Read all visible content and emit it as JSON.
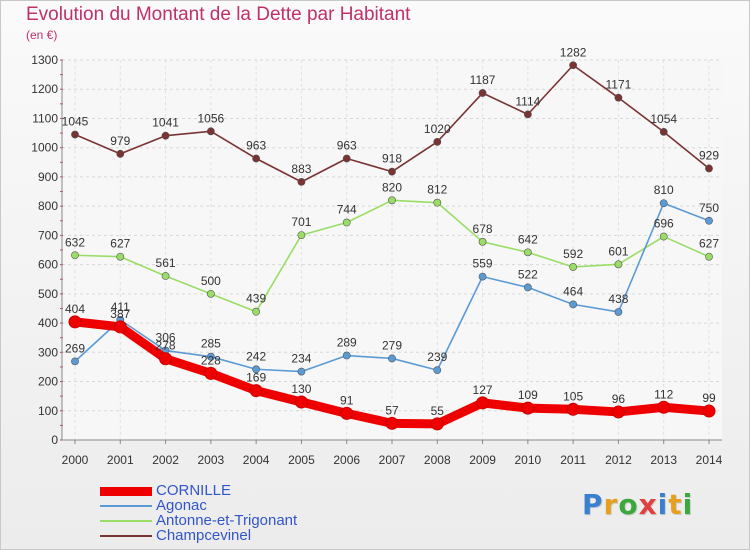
{
  "title": "Evolution du Montant de la Dette par Habitant",
  "unit_label": "(en €)",
  "logo_text": "Proxiti",
  "chart_data": {
    "type": "line",
    "title": "Evolution du Montant de la Dette par Habitant",
    "ylabel": "(en €)",
    "xlabel": "",
    "ylim": [
      0,
      1300
    ],
    "yticks": [
      0,
      100,
      200,
      300,
      400,
      500,
      600,
      700,
      800,
      900,
      1000,
      1100,
      1200,
      1300
    ],
    "x": [
      2000,
      2001,
      2002,
      2003,
      2004,
      2005,
      2006,
      2007,
      2008,
      2009,
      2010,
      2011,
      2012,
      2013,
      2014
    ],
    "grid": true,
    "legend_position": "bottom-left",
    "series": [
      {
        "name": "CORNILLE",
        "color": "#ee0000",
        "values": [
          404,
          387,
          278,
          228,
          169,
          130,
          91,
          57,
          55,
          127,
          109,
          105,
          96,
          112,
          99
        ]
      },
      {
        "name": "Agonac",
        "color": "#5b9bd5",
        "values": [
          269,
          411,
          306,
          285,
          242,
          234,
          289,
          279,
          239,
          559,
          522,
          464,
          438,
          810,
          750
        ]
      },
      {
        "name": "Antonne-et-Trigonant",
        "color": "#99dd66",
        "values": [
          632,
          627,
          561,
          500,
          439,
          701,
          744,
          820,
          812,
          678,
          642,
          592,
          601,
          696,
          627
        ]
      },
      {
        "name": "Champcevinel",
        "color": "#7a3333",
        "values": [
          1045,
          979,
          1041,
          1056,
          963,
          883,
          963,
          918,
          1020,
          1187,
          1114,
          1282,
          1171,
          1054,
          929
        ]
      }
    ]
  }
}
